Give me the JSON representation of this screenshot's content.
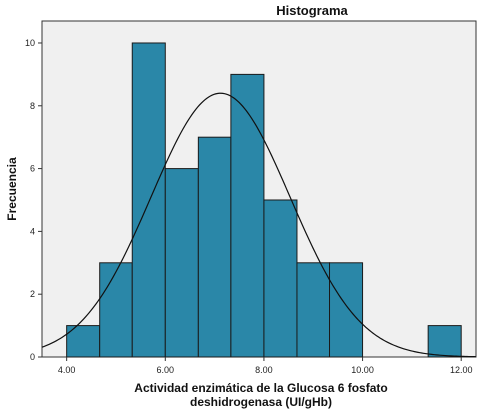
{
  "chart_data": {
    "type": "bar",
    "title": "Histograma",
    "xlabel": [
      "Actividad enzimática de la Glucosa 6 fosfato",
      "deshidrogenasa (UI/gHb)"
    ],
    "ylabel": "Frecuencia",
    "xlim": [
      3.5,
      12.3
    ],
    "ylim": [
      0,
      10.7
    ],
    "x_ticks": [
      {
        "value": 4,
        "label": "4.00"
      },
      {
        "value": 6,
        "label": "6.00"
      },
      {
        "value": 8,
        "label": "8.00"
      },
      {
        "value": 10,
        "label": "10.00"
      },
      {
        "value": 12,
        "label": "12.00"
      }
    ],
    "y_ticks": [
      0,
      2,
      4,
      6,
      8,
      10
    ],
    "bins": [
      {
        "start": 4.0,
        "end": 4.67,
        "count": 1
      },
      {
        "start": 4.67,
        "end": 5.33,
        "count": 3
      },
      {
        "start": 5.33,
        "end": 6.0,
        "count": 10
      },
      {
        "start": 6.0,
        "end": 6.67,
        "count": 6
      },
      {
        "start": 6.67,
        "end": 7.33,
        "count": 7
      },
      {
        "start": 7.33,
        "end": 8.0,
        "count": 9
      },
      {
        "start": 8.0,
        "end": 8.67,
        "count": 5
      },
      {
        "start": 8.67,
        "end": 9.33,
        "count": 3
      },
      {
        "start": 9.33,
        "end": 10.0,
        "count": 3
      },
      {
        "start": 10.0,
        "end": 10.67,
        "count": 0
      },
      {
        "start": 10.67,
        "end": 11.33,
        "count": 0
      },
      {
        "start": 11.33,
        "end": 12.0,
        "count": 1
      }
    ],
    "normal_curve": {
      "mean": 7.12,
      "sd": 1.41,
      "peak": 8.4
    },
    "grid": false,
    "colors": {
      "bar_fill": "#2a87a8",
      "bar_stroke": "#1a1a1a",
      "plot_background": "#f0f0f0",
      "curve": "#111111"
    }
  }
}
